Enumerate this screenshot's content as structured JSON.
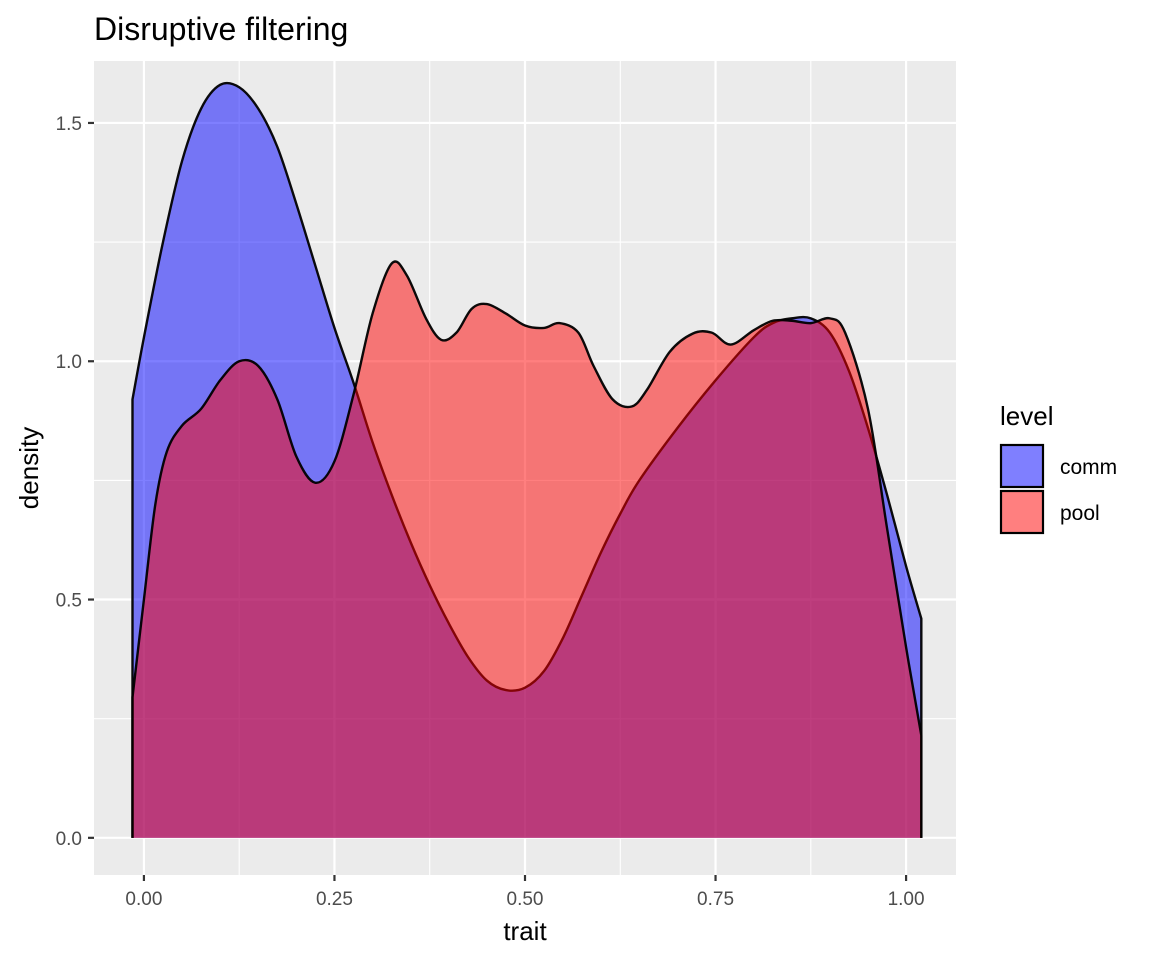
{
  "chart_data": {
    "type": "area",
    "title": "Disruptive filtering",
    "xlabel": "trait",
    "ylabel": "density",
    "xlim": [
      -0.0655,
      1.0655
    ],
    "ylim": [
      -0.078,
      1.63
    ],
    "x_ticks": [
      0.0,
      0.25,
      0.5,
      0.75,
      1.0
    ],
    "x_tick_labels": [
      "0.00",
      "0.25",
      "0.50",
      "0.75",
      "1.00"
    ],
    "y_ticks": [
      0.0,
      0.5,
      1.0,
      1.5
    ],
    "y_tick_labels": [
      "0.0",
      "0.5",
      "1.0",
      "1.5"
    ],
    "grid": true,
    "legend": {
      "title": "level",
      "position": "right",
      "entries": [
        "comm",
        "pool"
      ]
    },
    "series": [
      {
        "name": "comm",
        "color": "#0000ff",
        "fill_alpha": 0.5,
        "points": [
          [
            -0.015,
            0.92
          ],
          [
            0.0,
            1.05
          ],
          [
            0.025,
            1.25
          ],
          [
            0.05,
            1.42
          ],
          [
            0.075,
            1.53
          ],
          [
            0.1,
            1.58
          ],
          [
            0.125,
            1.575
          ],
          [
            0.15,
            1.53
          ],
          [
            0.175,
            1.45
          ],
          [
            0.2,
            1.33
          ],
          [
            0.225,
            1.2
          ],
          [
            0.25,
            1.07
          ],
          [
            0.275,
            0.955
          ],
          [
            0.3,
            0.83
          ],
          [
            0.325,
            0.72
          ],
          [
            0.35,
            0.62
          ],
          [
            0.375,
            0.53
          ],
          [
            0.4,
            0.45
          ],
          [
            0.425,
            0.38
          ],
          [
            0.45,
            0.33
          ],
          [
            0.475,
            0.31
          ],
          [
            0.5,
            0.315
          ],
          [
            0.525,
            0.35
          ],
          [
            0.55,
            0.42
          ],
          [
            0.575,
            0.51
          ],
          [
            0.6,
            0.6
          ],
          [
            0.625,
            0.68
          ],
          [
            0.65,
            0.75
          ],
          [
            0.7,
            0.86
          ],
          [
            0.75,
            0.96
          ],
          [
            0.8,
            1.05
          ],
          [
            0.825,
            1.08
          ],
          [
            0.85,
            1.09
          ],
          [
            0.875,
            1.09
          ],
          [
            0.9,
            1.06
          ],
          [
            0.925,
            0.98
          ],
          [
            0.95,
            0.86
          ],
          [
            0.975,
            0.72
          ],
          [
            1.0,
            0.57
          ],
          [
            1.02,
            0.46
          ]
        ]
      },
      {
        "name": "pool",
        "color": "#ff0000",
        "fill_alpha": 0.5,
        "points": [
          [
            -0.015,
            0.295
          ],
          [
            0.0,
            0.5
          ],
          [
            0.015,
            0.7
          ],
          [
            0.03,
            0.81
          ],
          [
            0.05,
            0.865
          ],
          [
            0.075,
            0.9
          ],
          [
            0.1,
            0.96
          ],
          [
            0.125,
            1.0
          ],
          [
            0.15,
            0.99
          ],
          [
            0.175,
            0.92
          ],
          [
            0.2,
            0.8
          ],
          [
            0.225,
            0.745
          ],
          [
            0.25,
            0.79
          ],
          [
            0.275,
            0.93
          ],
          [
            0.3,
            1.1
          ],
          [
            0.325,
            1.205
          ],
          [
            0.345,
            1.18
          ],
          [
            0.37,
            1.09
          ],
          [
            0.39,
            1.045
          ],
          [
            0.41,
            1.06
          ],
          [
            0.43,
            1.11
          ],
          [
            0.45,
            1.12
          ],
          [
            0.475,
            1.1
          ],
          [
            0.5,
            1.075
          ],
          [
            0.525,
            1.07
          ],
          [
            0.545,
            1.08
          ],
          [
            0.57,
            1.06
          ],
          [
            0.59,
            0.99
          ],
          [
            0.615,
            0.92
          ],
          [
            0.64,
            0.905
          ],
          [
            0.66,
            0.94
          ],
          [
            0.69,
            1.02
          ],
          [
            0.72,
            1.058
          ],
          [
            0.745,
            1.06
          ],
          [
            0.77,
            1.035
          ],
          [
            0.8,
            1.065
          ],
          [
            0.825,
            1.085
          ],
          [
            0.85,
            1.085
          ],
          [
            0.875,
            1.08
          ],
          [
            0.9,
            1.09
          ],
          [
            0.92,
            1.06
          ],
          [
            0.95,
            0.9
          ],
          [
            0.975,
            0.65
          ],
          [
            1.0,
            0.4
          ],
          [
            1.02,
            0.215
          ]
        ]
      }
    ]
  }
}
